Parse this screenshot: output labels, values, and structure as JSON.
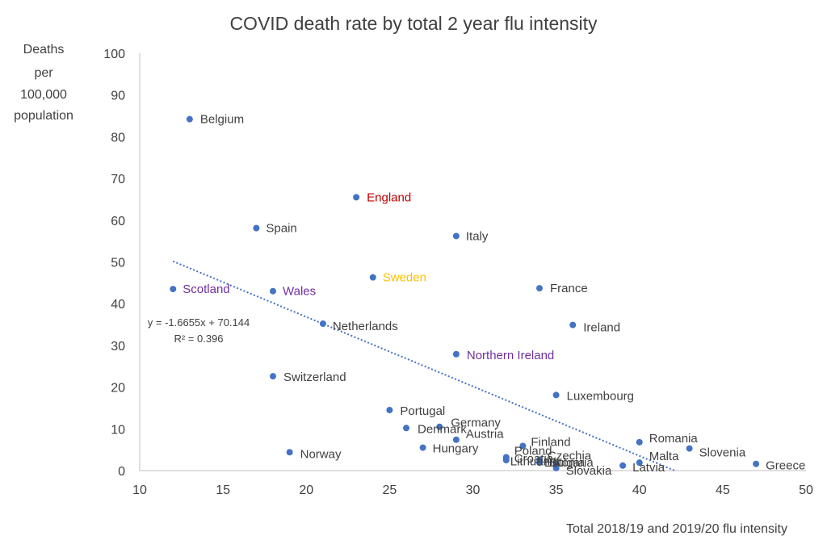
{
  "chart_data": {
    "type": "scatter",
    "title": "COVID death rate by total 2 year flu intensity",
    "xlabel": "Total 2018/19 and 2019/20 flu intensity",
    "ylabel_lines": [
      "Deaths",
      "per",
      "100,000",
      "population"
    ],
    "xlim": [
      10,
      50
    ],
    "ylim": [
      0,
      100
    ],
    "x_ticks": [
      10,
      15,
      20,
      25,
      30,
      35,
      40,
      45,
      50
    ],
    "y_ticks": [
      0,
      10,
      20,
      30,
      40,
      50,
      60,
      70,
      80,
      90,
      100
    ],
    "grid": false,
    "point_color": "#4472c4",
    "text_color": "#404040",
    "points": [
      {
        "label": "Belgium",
        "x": 13,
        "y": 84.2,
        "color": "#404040"
      },
      {
        "label": "England",
        "x": 23,
        "y": 65.5,
        "color": "#c00000"
      },
      {
        "label": "Spain",
        "x": 17,
        "y": 58.1,
        "color": "#404040"
      },
      {
        "label": "Italy",
        "x": 29,
        "y": 56.2,
        "color": "#404040"
      },
      {
        "label": "Scotland",
        "x": 12,
        "y": 43.5,
        "color": "#7030a0"
      },
      {
        "label": "Wales",
        "x": 18,
        "y": 43.0,
        "color": "#7030a0"
      },
      {
        "label": "Sweden",
        "x": 24,
        "y": 46.3,
        "color": "#ffc000"
      },
      {
        "label": "France",
        "x": 34,
        "y": 43.7,
        "color": "#404040"
      },
      {
        "label": "Netherlands",
        "x": 21,
        "y": 35.2,
        "color": "#404040"
      },
      {
        "label": "Ireland",
        "x": 36,
        "y": 34.9,
        "color": "#404040"
      },
      {
        "label": "Northern Ireland",
        "x": 29,
        "y": 27.9,
        "color": "#7030a0"
      },
      {
        "label": "Switzerland",
        "x": 18,
        "y": 22.6,
        "color": "#404040"
      },
      {
        "label": "Luxembourg",
        "x": 35,
        "y": 18.1,
        "color": "#404040"
      },
      {
        "label": "Portugal",
        "x": 25,
        "y": 14.5,
        "color": "#404040"
      },
      {
        "label": "Denmark",
        "x": 26,
        "y": 10.2,
        "color": "#404040"
      },
      {
        "label": "Germany",
        "x": 28,
        "y": 10.5,
        "color": "#404040"
      },
      {
        "label": "Austria",
        "x": 29,
        "y": 7.4,
        "color": "#404040"
      },
      {
        "label": "Hungary",
        "x": 27,
        "y": 5.5,
        "color": "#404040"
      },
      {
        "label": "Norway",
        "x": 19,
        "y": 4.4,
        "color": "#404040"
      },
      {
        "label": "Finland",
        "x": 33,
        "y": 5.9,
        "color": "#404040"
      },
      {
        "label": "Poland",
        "x": 32,
        "y": 3.2,
        "color": "#404040"
      },
      {
        "label": "Croatia",
        "x": 32,
        "y": 2.5,
        "color": "#404040"
      },
      {
        "label": "Lithuania",
        "x": 32,
        "y": 2.8,
        "color": "#404040"
      },
      {
        "label": "Czechia",
        "x": 34,
        "y": 2.6,
        "color": "#404040"
      },
      {
        "label": "Estonia",
        "x": 34,
        "y": 1.9,
        "color": "#404040"
      },
      {
        "label": "Bulgaria",
        "x": 35,
        "y": 1.5,
        "color": "#404040"
      },
      {
        "label": "Slovakia",
        "x": 35,
        "y": 0.6,
        "color": "#404040"
      },
      {
        "label": "Romania",
        "x": 40,
        "y": 6.8,
        "color": "#404040"
      },
      {
        "label": "Slovenia",
        "x": 43,
        "y": 5.3,
        "color": "#404040"
      },
      {
        "label": "Malta",
        "x": 40,
        "y": 1.9,
        "color": "#404040"
      },
      {
        "label": "Latvia",
        "x": 39,
        "y": 1.2,
        "color": "#404040"
      },
      {
        "label": "Greece",
        "x": 47,
        "y": 1.6,
        "color": "#404040"
      }
    ],
    "trendline": {
      "type": "linear",
      "slope": -1.6655,
      "intercept": 70.144,
      "x_range": [
        12,
        42.1
      ],
      "color": "#4472c4",
      "equation": "y = -1.6655x + 70.144",
      "r_squared": "R² = 0.396"
    }
  }
}
